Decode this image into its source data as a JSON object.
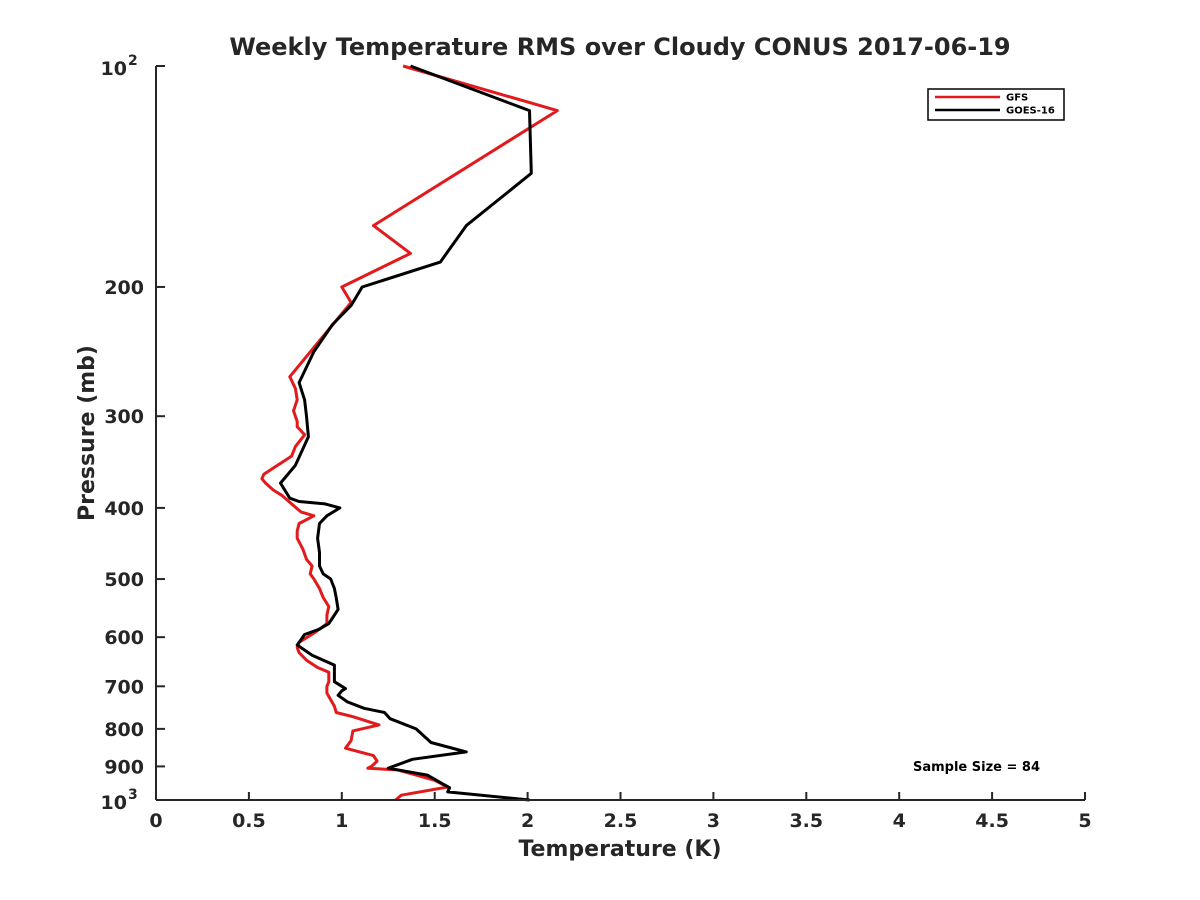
{
  "chart_data": {
    "type": "line",
    "title": "Weekly Temperature RMS over Cloudy CONUS 2017-06-19",
    "xlabel": "Temperature (K)",
    "ylabel": "Pressure (mb)",
    "xlim": [
      0,
      5
    ],
    "ylim": [
      100,
      1000
    ],
    "y_scale": "log",
    "y_reversed": true,
    "grid": false,
    "legend_position": "top-right",
    "annotation": "Sample Size = 84",
    "x_ticks": [
      {
        "value": 0,
        "label": "0"
      },
      {
        "value": 0.5,
        "label": "0.5"
      },
      {
        "value": 1,
        "label": "1"
      },
      {
        "value": 1.5,
        "label": "1.5"
      },
      {
        "value": 2,
        "label": "2"
      },
      {
        "value": 2.5,
        "label": "2.5"
      },
      {
        "value": 3,
        "label": "3"
      },
      {
        "value": 3.5,
        "label": "3.5"
      },
      {
        "value": 4,
        "label": "4"
      },
      {
        "value": 4.5,
        "label": "4.5"
      },
      {
        "value": 5,
        "label": "5"
      }
    ],
    "y_ticks": [
      {
        "value": 100,
        "base": "10",
        "exp": "2"
      },
      {
        "value": 200,
        "label": "200"
      },
      {
        "value": 300,
        "label": "300"
      },
      {
        "value": 400,
        "label": "400"
      },
      {
        "value": 500,
        "label": "500"
      },
      {
        "value": 600,
        "label": "600"
      },
      {
        "value": 700,
        "label": "700"
      },
      {
        "value": 800,
        "label": "800"
      },
      {
        "value": 900,
        "label": "900"
      },
      {
        "value": 1000,
        "base": "10",
        "exp": "3"
      }
    ],
    "series": [
      {
        "name": "GFS",
        "color": "#e31a1c",
        "x": [
          1.33,
          2.16,
          1.17,
          1.37,
          1.0,
          1.05,
          0.72,
          0.75,
          0.76,
          0.74,
          0.76,
          0.76,
          0.8,
          0.75,
          0.73,
          0.58,
          0.57,
          0.59,
          0.63,
          0.68,
          0.73,
          0.78,
          0.85,
          0.77,
          0.76,
          0.76,
          0.79,
          0.81,
          0.84,
          0.83,
          0.85,
          0.88,
          0.9,
          0.93,
          0.92,
          0.92,
          0.86,
          0.77,
          0.76,
          0.77,
          0.81,
          0.87,
          0.93,
          0.93,
          0.92,
          0.92,
          0.94,
          0.96,
          0.97,
          1.06,
          1.2,
          1.06,
          1.05,
          1.02,
          1.17,
          1.19,
          1.16,
          1.14,
          1.3,
          1.4,
          1.5,
          1.57,
          1.32,
          1.29
        ],
        "y": [
          100,
          115,
          165,
          180,
          200,
          210,
          265,
          275,
          285,
          295,
          305,
          310,
          318,
          330,
          340,
          360,
          365,
          370,
          378,
          385,
          395,
          405,
          410,
          420,
          430,
          440,
          455,
          470,
          480,
          492,
          500,
          515,
          530,
          545,
          560,
          575,
          590,
          610,
          620,
          630,
          645,
          660,
          670,
          690,
          700,
          715,
          730,
          745,
          760,
          770,
          790,
          805,
          830,
          850,
          870,
          885,
          900,
          905,
          910,
          925,
          940,
          960,
          985,
          1000
        ]
      },
      {
        "name": "GOES-16",
        "color": "#000000",
        "x": [
          1.37,
          2.01,
          2.02,
          1.67,
          1.53,
          1.11,
          1.05,
          0.95,
          0.85,
          0.77,
          0.8,
          0.81,
          0.82,
          0.75,
          0.67,
          0.72,
          0.77,
          0.91,
          0.99,
          0.92,
          0.88,
          0.87,
          0.88,
          0.88,
          0.9,
          0.94,
          0.96,
          0.97,
          0.98,
          0.95,
          0.93,
          0.88,
          0.8,
          0.78,
          0.76,
          0.84,
          0.96,
          0.96,
          0.96,
          1.0,
          1.02,
          1.0,
          0.98,
          1.03,
          1.12,
          1.23,
          1.26,
          1.4,
          1.48,
          1.67,
          1.38,
          1.25,
          1.46,
          1.54,
          1.58,
          1.57,
          2.01
        ],
        "y": [
          100,
          115,
          140,
          165,
          185,
          200,
          212,
          225,
          245,
          270,
          285,
          300,
          320,
          350,
          370,
          388,
          392,
          395,
          400,
          410,
          420,
          440,
          460,
          480,
          492,
          500,
          515,
          530,
          550,
          565,
          575,
          585,
          595,
          605,
          615,
          635,
          655,
          670,
          690,
          700,
          705,
          710,
          720,
          735,
          750,
          760,
          775,
          800,
          835,
          860,
          880,
          905,
          925,
          950,
          962,
          975,
          1000
        ]
      }
    ]
  }
}
